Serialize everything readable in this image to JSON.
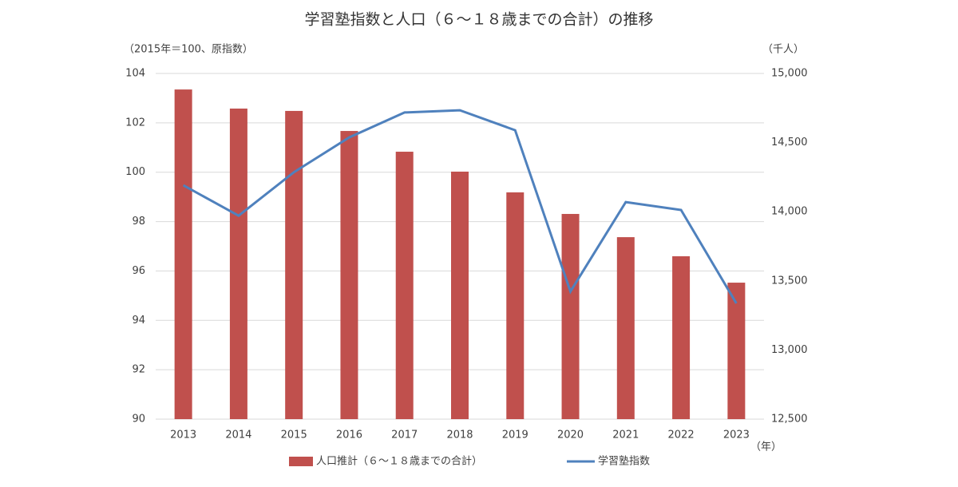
{
  "chart_data": {
    "type": "bar",
    "title": "学習塾指数と人口（６～１８歳までの合計）の推移",
    "y_label": "（2015年＝100、原指数）",
    "y2_label": "（千人）",
    "x_label": "（年）",
    "categories": [
      "2013",
      "2014",
      "2015",
      "2016",
      "2017",
      "2018",
      "2019",
      "2020",
      "2021",
      "2022",
      "2023"
    ],
    "series": [
      {
        "name": "人口推計（６～１８歳までの合計）",
        "type": "bar",
        "axis": "y2",
        "color": "#c0504d",
        "values": [
          14884,
          14746,
          14729,
          14584,
          14434,
          14290,
          14140,
          13984,
          13816,
          13678,
          13487
        ]
      },
      {
        "name": "学習塾指数",
        "type": "line",
        "color": "#4f81bd",
        "values": [
          99.47,
          98.24,
          100,
          101.41,
          102.42,
          102.51,
          101.7,
          95.17,
          98.79,
          98.47,
          94.69
        ]
      }
    ],
    "ylim": [
      90,
      104
    ],
    "yticks": [
      90,
      92,
      94,
      96,
      98,
      100,
      102,
      104
    ],
    "y2lim": [
      12500,
      15000
    ],
    "y2ticks": [
      {
        "value": 12500,
        "label": "12,500"
      },
      {
        "value": 13000,
        "label": "13,000"
      },
      {
        "value": 13500,
        "label": "13,500"
      },
      {
        "value": 14000,
        "label": "14,000"
      },
      {
        "value": 14500,
        "label": "14,500"
      },
      {
        "value": 15000,
        "label": "15,000"
      }
    ],
    "grid": true,
    "legend": "bottom"
  }
}
